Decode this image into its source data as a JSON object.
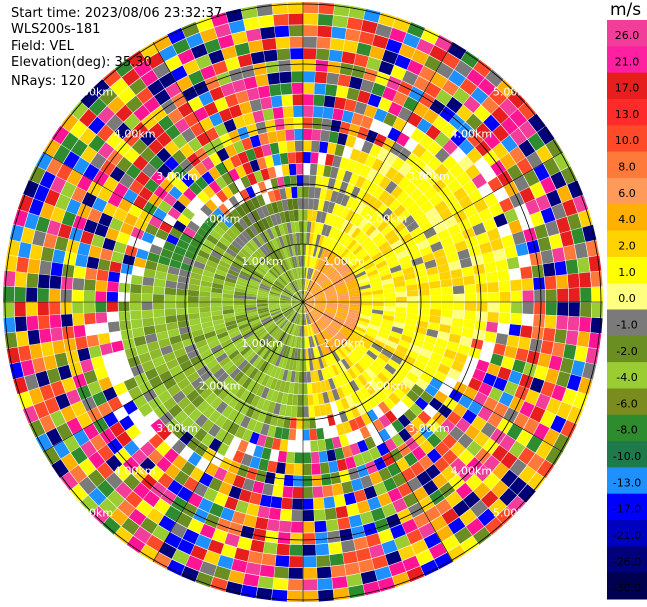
{
  "info": {
    "start_time": "Start time: 2023/08/06 23:32:37",
    "instrument": "WLS200s-181",
    "field": "Field: VEL",
    "elevation": "Elevation(deg): 35.30",
    "nrays": "NRays: 120"
  },
  "colorbar": {
    "unit": "m/s",
    "ticks": [
      "26.0",
      "21.0",
      "17.0",
      "13.0",
      "10.0",
      "8.0",
      "6.0",
      "4.0",
      "2.0",
      "1.0",
      "0.0",
      "-1.0",
      "-2.0",
      "-4.0",
      "-6.0",
      "-8.0",
      "-10.0",
      "-13.0",
      "-17.0",
      "-21.0",
      "-26.0",
      "-30.0"
    ],
    "colors": [
      "#f23d9a",
      "#ff1fa0",
      "#e61e1e",
      "#ff2a2a",
      "#ff4a2a",
      "#ff7a3a",
      "#ff9a5a",
      "#ffb000",
      "#ffd200",
      "#ffff00",
      "#ffff80",
      "#7a7a7a",
      "#6b8e23",
      "#9acd32",
      "#7a8c1e",
      "#2e8b2e",
      "#1e7a4a",
      "#1e90ff",
      "#0000ff",
      "#0000c0",
      "#00007a",
      "#000050"
    ]
  },
  "range_rings": {
    "labels": [
      "1.00km",
      "2.00km",
      "3.00km",
      "4.00km",
      "5.00km"
    ]
  }
}
